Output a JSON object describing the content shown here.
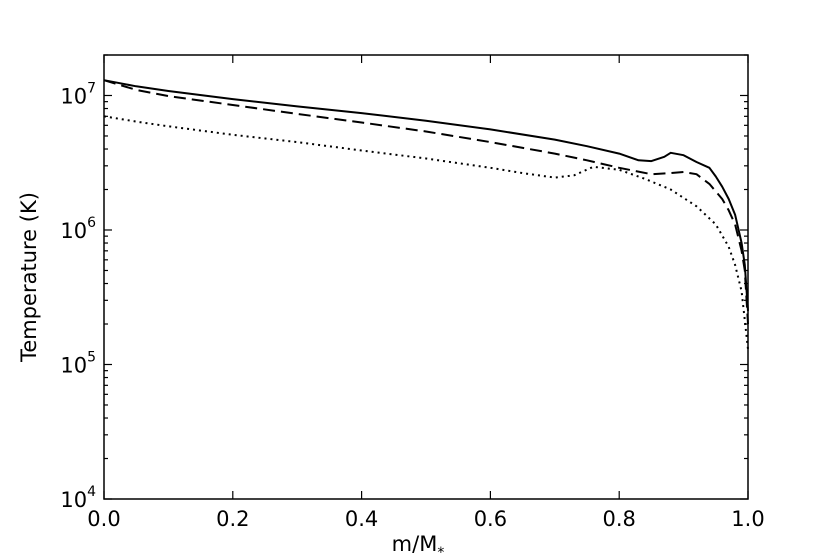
{
  "chart_data": {
    "type": "line",
    "title": "",
    "xlabel": "m/M",
    "xlabel_subscript": "*",
    "ylabel": "Temperature (K)",
    "xlim": [
      0.0,
      1.0
    ],
    "ylim": [
      10000,
      20000000
    ],
    "yscale": "log",
    "grid": false,
    "x_ticks": [
      "0.0",
      "0.2",
      "0.4",
      "0.6",
      "0.8",
      "1.0"
    ],
    "y_ticks": [
      {
        "base": "10",
        "exp": "4"
      },
      {
        "base": "10",
        "exp": "5"
      },
      {
        "base": "10",
        "exp": "6"
      },
      {
        "base": "10",
        "exp": "7"
      }
    ],
    "series": [
      {
        "style": "solid",
        "x": [
          0.0,
          0.05,
          0.1,
          0.2,
          0.3,
          0.4,
          0.5,
          0.6,
          0.7,
          0.75,
          0.8,
          0.83,
          0.85,
          0.87,
          0.88,
          0.9,
          0.92,
          0.94,
          0.95,
          0.96,
          0.97,
          0.98,
          0.99,
          0.995,
          1.0
        ],
        "y": [
          13000000,
          11700000,
          10800000,
          9400000,
          8300000,
          7400000,
          6500000,
          5600000,
          4700000,
          4200000,
          3700000,
          3300000,
          3250000,
          3500000,
          3750000,
          3600000,
          3200000,
          2900000,
          2500000,
          2100000,
          1700000,
          1300000,
          800000,
          550000,
          250000
        ]
      },
      {
        "style": "dashed",
        "x": [
          0.0,
          0.05,
          0.1,
          0.2,
          0.3,
          0.4,
          0.5,
          0.6,
          0.7,
          0.75,
          0.8,
          0.85,
          0.88,
          0.9,
          0.92,
          0.94,
          0.96,
          0.97,
          0.98,
          0.99,
          0.995,
          1.0
        ],
        "y": [
          13000000,
          11000000,
          9900000,
          8500000,
          7300000,
          6300000,
          5400000,
          4500000,
          3700000,
          3300000,
          2900000,
          2600000,
          2650000,
          2700000,
          2600000,
          2200000,
          1700000,
          1400000,
          1100000,
          700000,
          500000,
          200000
        ]
      },
      {
        "style": "dotted",
        "x": [
          0.0,
          0.05,
          0.1,
          0.2,
          0.3,
          0.4,
          0.5,
          0.6,
          0.65,
          0.7,
          0.73,
          0.76,
          0.8,
          0.84,
          0.88,
          0.92,
          0.95,
          0.97,
          0.98,
          0.99,
          1.0
        ],
        "y": [
          7000000,
          6400000,
          5900000,
          5100000,
          4500000,
          3900000,
          3400000,
          2900000,
          2650000,
          2450000,
          2550000,
          2950000,
          2800000,
          2400000,
          2000000,
          1500000,
          1100000,
          750000,
          550000,
          350000,
          130000
        ]
      }
    ]
  }
}
